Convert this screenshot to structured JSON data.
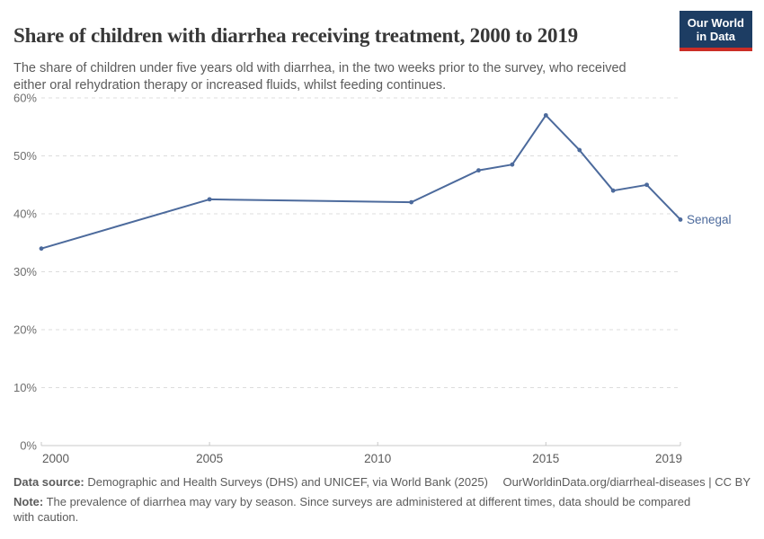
{
  "header": {
    "title": "Share of children with diarrhea receiving treatment, 2000 to 2019",
    "subtitle": "The share of children under five years old with diarrhea, in the two weeks prior to the survey, who received either oral rehydration therapy or increased fluids, whilst feeding continues.",
    "logo": {
      "line1": "Our World",
      "line2": "in Data",
      "bg_color": "#1d3d63",
      "accent_color": "#cb2d26"
    }
  },
  "chart_data": {
    "type": "line",
    "title": "Share of children with diarrhea receiving treatment, 2000 to 2019",
    "xlabel": "",
    "ylabel": "",
    "xlim": [
      2000,
      2019
    ],
    "ylim": [
      0,
      60
    ],
    "grid": "dashed-horizontal",
    "legend_position": "end-of-line-label",
    "series": [
      {
        "name": "Senegal",
        "color": "#4C6A9C",
        "points": [
          [
            2000,
            34
          ],
          [
            2005,
            42.5
          ],
          [
            2011,
            42
          ],
          [
            2013,
            47.5
          ],
          [
            2014,
            48.5
          ],
          [
            2015,
            57
          ],
          [
            2016,
            51
          ],
          [
            2017,
            44
          ],
          [
            2018,
            45
          ],
          [
            2019,
            39
          ]
        ]
      }
    ],
    "yticks": [
      {
        "v": 0,
        "label": "0%"
      },
      {
        "v": 10,
        "label": "10%"
      },
      {
        "v": 20,
        "label": "20%"
      },
      {
        "v": 30,
        "label": "30%"
      },
      {
        "v": 40,
        "label": "40%"
      },
      {
        "v": 50,
        "label": "50%"
      },
      {
        "v": 60,
        "label": "60%"
      }
    ],
    "xticks": [
      {
        "v": 2000,
        "label": "2000"
      },
      {
        "v": 2005,
        "label": "2005"
      },
      {
        "v": 2010,
        "label": "2010"
      },
      {
        "v": 2015,
        "label": "2015"
      },
      {
        "v": 2019,
        "label": "2019"
      }
    ],
    "colors": {
      "line": "#4C6A9C",
      "gridline": "#dcdcdc",
      "axis": "#c8c8c8",
      "ytick_label": "#6e6e6e",
      "xtick_label": "#5b5b5b"
    }
  },
  "footer": {
    "data_source_label": "Data source:",
    "data_source_text": " Demographic and Health Surveys (DHS) and UNICEF, via World Bank (2025)",
    "attribution": "OurWorldinData.org/diarrheal-diseases | CC BY",
    "note_label": "Note:",
    "note_text": " The prevalence of diarrhea may vary by season. Since surveys are administered at different times, data should be compared with caution."
  }
}
